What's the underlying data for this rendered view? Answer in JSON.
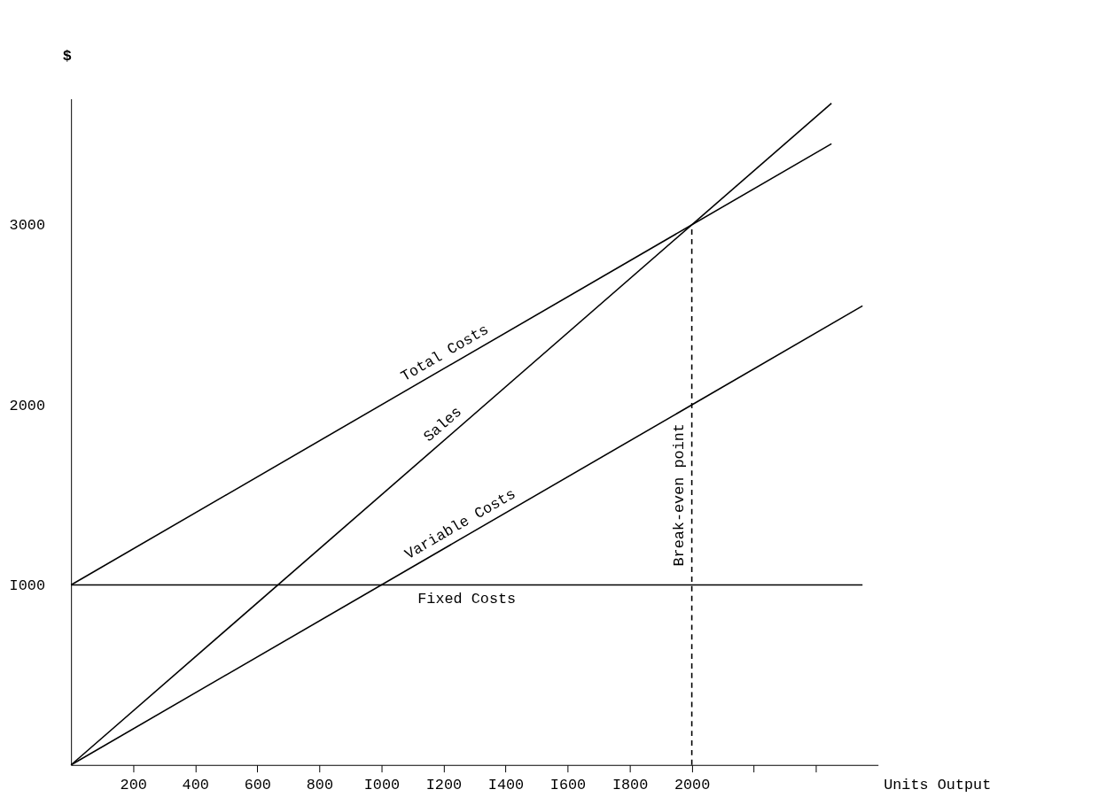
{
  "chart_data": {
    "type": "line",
    "xlabel": "Units Output",
    "ylabel": "$",
    "xlim": [
      0,
      2600
    ],
    "ylim": [
      0,
      3700
    ],
    "xticks": [
      200,
      400,
      600,
      800,
      {
        "value": 1000,
        "label": "I000"
      },
      {
        "value": 1200,
        "label": "I200"
      },
      {
        "value": 1400,
        "label": "I400"
      },
      {
        "value": 1600,
        "label": "I600"
      },
      {
        "value": 1800,
        "label": "I800"
      },
      2000,
      {
        "value": 2200,
        "label": null
      },
      {
        "value": 2400,
        "label": null
      }
    ],
    "yticks": [
      {
        "value": 1000,
        "label": "I000"
      },
      2000,
      3000
    ],
    "grid": false,
    "series": [
      {
        "name": "Total Costs",
        "color": "#000000",
        "x": [
          0,
          2450
        ],
        "values": [
          1000,
          3450
        ]
      },
      {
        "name": "Sales",
        "color": "#000000",
        "x": [
          0,
          2450
        ],
        "values": [
          0,
          3675
        ]
      },
      {
        "name": "Variable Costs",
        "color": "#000000",
        "x": [
          0,
          2550
        ],
        "values": [
          0,
          2550
        ]
      },
      {
        "name": "Fixed Costs",
        "color": "#000000",
        "x": [
          0,
          2550
        ],
        "values": [
          1000,
          1000
        ]
      },
      {
        "name": "Break-even point",
        "color": "#000000",
        "x": [
          2000,
          2000
        ],
        "values": [
          0,
          3000
        ],
        "line_style": "dashed"
      }
    ]
  }
}
